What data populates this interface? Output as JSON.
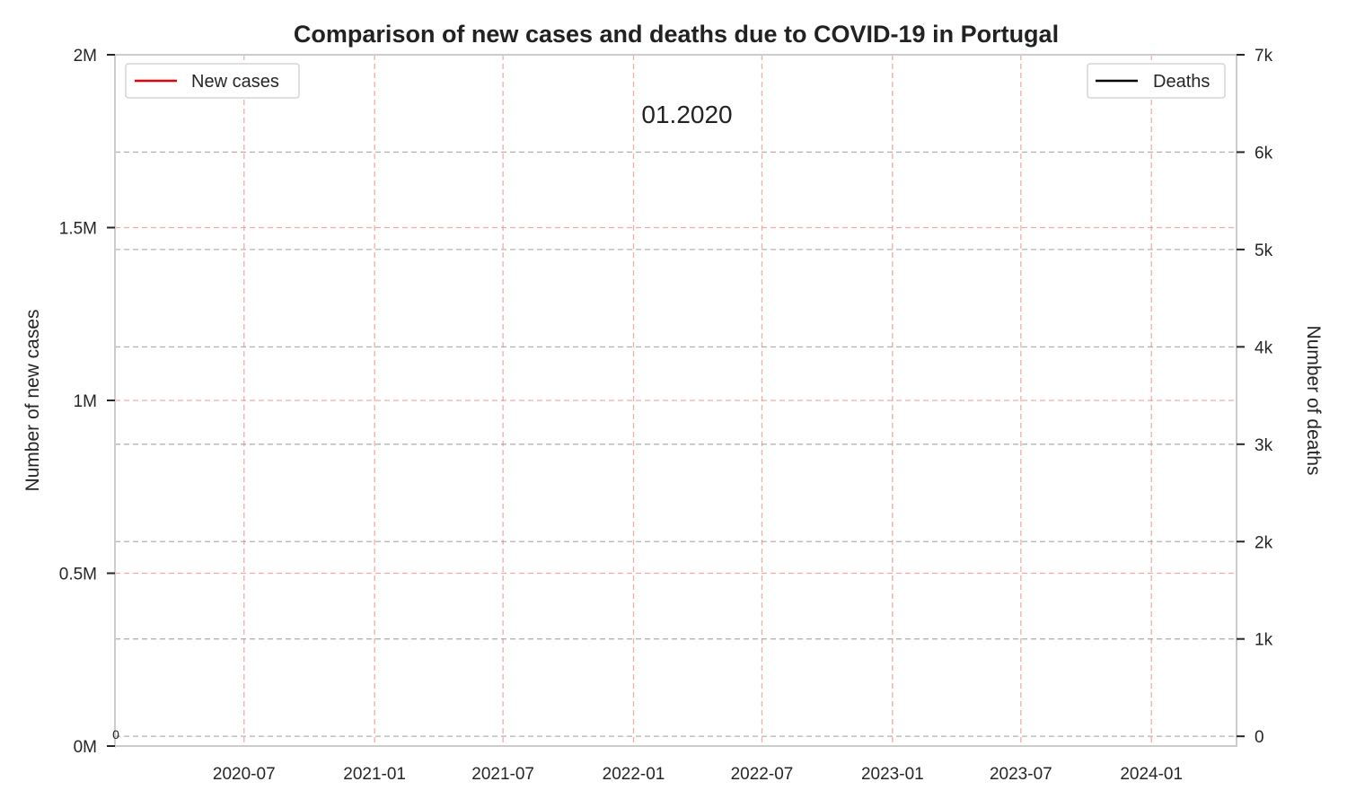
{
  "chart_data": {
    "type": "line",
    "title": "Comparison of new cases and deaths due to COVID-19 in Portugal",
    "xlabel": "",
    "ylabel": "Number of new cases",
    "y2label": "Number of deaths",
    "x_range": [
      "2020-01-01",
      "2024-04-30"
    ],
    "x_ticks": [
      "2020-07",
      "2021-01",
      "2021-07",
      "2022-01",
      "2022-07",
      "2023-01",
      "2023-07",
      "2024-01"
    ],
    "ylim": [
      0,
      2000000
    ],
    "y_ticks": [
      0,
      500000,
      1000000,
      1500000,
      2000000
    ],
    "y_tick_labels": [
      "0M",
      "0.5M",
      "1M",
      "1.5M",
      "2M"
    ],
    "y2lim": [
      -100,
      7000
    ],
    "y2_ticks": [
      0,
      1000,
      2000,
      3000,
      4000,
      5000,
      6000,
      7000
    ],
    "y2_tick_labels": [
      "0",
      "1k",
      "2k",
      "3k",
      "4k",
      "5k",
      "6k",
      "7k"
    ],
    "grid": true,
    "series": [
      {
        "name": "New cases",
        "axis": "left",
        "color": "#e8000b",
        "x": [
          "2020-01-01"
        ],
        "values": [
          0
        ]
      },
      {
        "name": "Deaths",
        "axis": "right",
        "color": "#000000",
        "x": [
          "2020-01-01"
        ],
        "values": [
          0
        ]
      }
    ],
    "legend_left_position": "top-left",
    "legend_right_position": "top-right",
    "annotations": {
      "date_label": "01.2020",
      "point_label": "0"
    }
  }
}
